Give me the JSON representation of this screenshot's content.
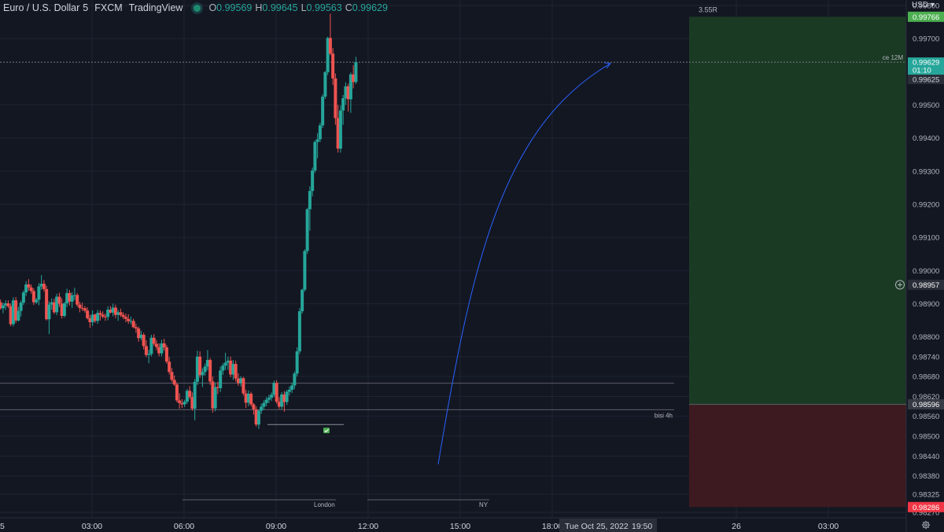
{
  "header": {
    "symbol": "Euro / U.S. Dollar",
    "interval": "5",
    "exchange": "FXCM",
    "source": "TradingView",
    "ohlc": {
      "o_label": "O",
      "o": "0.99569",
      "h_label": "H",
      "h": "0.99645",
      "l_label": "L",
      "l": "0.99563",
      "c_label": "C",
      "c": "0.99629"
    }
  },
  "currency": "USD",
  "colors": {
    "bg": "#131722",
    "up": "#26a69a",
    "down": "#ef5350",
    "grid": "#1f2433",
    "axis_text": "#b2b5be",
    "target_zone": "#1b3a24",
    "stop_zone": "#3d1a20",
    "target_tag": "#4caf50",
    "stop_tag": "#f23645",
    "arrow": "#2962ff"
  },
  "chart_data": {
    "type": "candlestick",
    "y_ticks": [
      "0.99800",
      "0.99700",
      "0.99500",
      "0.99400",
      "0.99300",
      "0.99200",
      "0.99100",
      "0.99000",
      "0.98900",
      "0.98800",
      "0.98740",
      "0.98680",
      "0.98620",
      "0.98560",
      "0.98500",
      "0.98440",
      "0.98380",
      "0.98325",
      "0.98270"
    ],
    "x_ticks": [
      {
        "label": "5",
        "t": -5.5
      },
      {
        "label": "03:00",
        "t": 3
      },
      {
        "label": "06:00",
        "t": 6
      },
      {
        "label": "09:00",
        "t": 9
      },
      {
        "label": "12:00",
        "t": 12
      },
      {
        "label": "15:00",
        "t": 15
      },
      {
        "label": "18:00",
        "t": 18
      },
      {
        "label": "26",
        "t": 24
      },
      {
        "label": "03:00",
        "t": 27
      }
    ],
    "date_label": "Tue Oct 25, 2022",
    "time_label": "19:50",
    "price_tags": {
      "target": "0.99766",
      "last": "0.99629",
      "countdown": "01:10",
      "prev": "0.99625",
      "crosshair": "0.98957",
      "entry": "0.98596",
      "stop": "0.98286"
    },
    "ratio_label": "3.55R",
    "annotations": {
      "ce": "ce 12M",
      "bisi": "bisi 4h",
      "london": "London",
      "ny": "NY"
    },
    "candles": [
      [
        0.98873,
        0.98877,
        0.98857,
        0.98866
      ],
      [
        0.98866,
        0.98894,
        0.98858,
        0.98887
      ],
      [
        0.98887,
        0.98902,
        0.98872,
        0.98894
      ],
      [
        0.98894,
        0.98906,
        0.98882,
        0.989
      ],
      [
        0.989,
        0.98914,
        0.98889,
        0.98904
      ],
      [
        0.98904,
        0.98912,
        0.98882,
        0.98886
      ],
      [
        0.98886,
        0.98903,
        0.98871,
        0.98895
      ],
      [
        0.98895,
        0.9891,
        0.98881,
        0.98901
      ],
      [
        0.98901,
        0.9891,
        0.98887,
        0.98892
      ],
      [
        0.98892,
        0.989,
        0.98832,
        0.98838
      ],
      [
        0.98838,
        0.98919,
        0.98831,
        0.9891
      ],
      [
        0.9891,
        0.9892,
        0.98842,
        0.98849
      ],
      [
        0.98849,
        0.9889,
        0.98846,
        0.98878
      ],
      [
        0.98878,
        0.98909,
        0.98861,
        0.98903
      ],
      [
        0.98903,
        0.9894,
        0.98896,
        0.98934
      ],
      [
        0.98934,
        0.98968,
        0.98923,
        0.98958
      ],
      [
        0.98958,
        0.98974,
        0.98939,
        0.98949
      ],
      [
        0.98949,
        0.98958,
        0.9893,
        0.98938
      ],
      [
        0.98938,
        0.98946,
        0.98896,
        0.98904
      ],
      [
        0.98904,
        0.98917,
        0.98899,
        0.98912
      ],
      [
        0.98912,
        0.98962,
        0.98895,
        0.98952
      ],
      [
        0.98952,
        0.98986,
        0.98942,
        0.9896
      ],
      [
        0.9896,
        0.98971,
        0.98936,
        0.98944
      ],
      [
        0.98944,
        0.98954,
        0.98849,
        0.98853
      ],
      [
        0.98853,
        0.98907,
        0.98808,
        0.98897
      ],
      [
        0.98897,
        0.98916,
        0.98882,
        0.98904
      ],
      [
        0.98904,
        0.98915,
        0.98869,
        0.98874
      ],
      [
        0.98874,
        0.9893,
        0.98865,
        0.98921
      ],
      [
        0.98921,
        0.98933,
        0.9889,
        0.989
      ],
      [
        0.989,
        0.98916,
        0.98855,
        0.98863
      ],
      [
        0.98863,
        0.98906,
        0.98858,
        0.98901
      ],
      [
        0.98901,
        0.98945,
        0.9889,
        0.98932
      ],
      [
        0.98932,
        0.98941,
        0.98894,
        0.98906
      ],
      [
        0.98906,
        0.98935,
        0.98887,
        0.98925
      ],
      [
        0.98925,
        0.98948,
        0.98911,
        0.98926
      ],
      [
        0.98926,
        0.98932,
        0.98891,
        0.98897
      ],
      [
        0.98897,
        0.98906,
        0.98874,
        0.98887
      ],
      [
        0.98887,
        0.98903,
        0.98878,
        0.98886
      ],
      [
        0.98886,
        0.98893,
        0.98873,
        0.98879
      ],
      [
        0.98879,
        0.98889,
        0.98852,
        0.98856
      ],
      [
        0.98856,
        0.98866,
        0.98827,
        0.98844
      ],
      [
        0.98844,
        0.9888,
        0.98833,
        0.98867
      ],
      [
        0.98867,
        0.9887,
        0.98842,
        0.98848
      ],
      [
        0.98848,
        0.98881,
        0.98839,
        0.98872
      ],
      [
        0.98872,
        0.9888,
        0.98849,
        0.98867
      ],
      [
        0.98867,
        0.98877,
        0.98855,
        0.98861
      ],
      [
        0.98861,
        0.9887,
        0.98848,
        0.9886
      ],
      [
        0.9886,
        0.98892,
        0.9885,
        0.98882
      ],
      [
        0.98882,
        0.98893,
        0.9887,
        0.98873
      ],
      [
        0.98873,
        0.989,
        0.98862,
        0.98888
      ],
      [
        0.98888,
        0.98897,
        0.98856,
        0.98866
      ],
      [
        0.98866,
        0.98881,
        0.98848,
        0.98874
      ],
      [
        0.98874,
        0.98885,
        0.9886,
        0.98866
      ],
      [
        0.98866,
        0.98874,
        0.98853,
        0.9886
      ],
      [
        0.9886,
        0.9887,
        0.98844,
        0.98854
      ],
      [
        0.98854,
        0.98868,
        0.98839,
        0.98847
      ],
      [
        0.98847,
        0.98861,
        0.98838,
        0.98848
      ],
      [
        0.98848,
        0.98855,
        0.98826,
        0.98829
      ],
      [
        0.98829,
        0.9884,
        0.98812,
        0.98825
      ],
      [
        0.98825,
        0.98831,
        0.98785,
        0.98796
      ],
      [
        0.98796,
        0.98818,
        0.98789,
        0.98806
      ],
      [
        0.98806,
        0.98812,
        0.98762,
        0.98772
      ],
      [
        0.98772,
        0.9879,
        0.98738,
        0.98745
      ],
      [
        0.98745,
        0.98761,
        0.9872,
        0.98748
      ],
      [
        0.98748,
        0.98806,
        0.98741,
        0.98797
      ],
      [
        0.98797,
        0.98808,
        0.98773,
        0.98779
      ],
      [
        0.98779,
        0.9879,
        0.9876,
        0.98769
      ],
      [
        0.98769,
        0.9878,
        0.98741,
        0.9875
      ],
      [
        0.9875,
        0.98791,
        0.98741,
        0.9878
      ],
      [
        0.9878,
        0.98794,
        0.98758,
        0.98768
      ],
      [
        0.98768,
        0.98775,
        0.98719,
        0.98725
      ],
      [
        0.98725,
        0.98739,
        0.98686,
        0.98694
      ],
      [
        0.98694,
        0.98706,
        0.98664,
        0.9867
      ],
      [
        0.9867,
        0.98683,
        0.98652,
        0.98656
      ],
      [
        0.98656,
        0.98662,
        0.98602,
        0.98608
      ],
      [
        0.98608,
        0.9863,
        0.98583,
        0.986
      ],
      [
        0.986,
        0.98612,
        0.98585,
        0.98596
      ],
      [
        0.98596,
        0.9861,
        0.98588,
        0.98604
      ],
      [
        0.98604,
        0.98643,
        0.98598,
        0.98637
      ],
      [
        0.98637,
        0.98651,
        0.98612,
        0.98618
      ],
      [
        0.98618,
        0.98632,
        0.98577,
        0.98583
      ],
      [
        0.98583,
        0.98673,
        0.98548,
        0.98664
      ],
      [
        0.98664,
        0.98758,
        0.98654,
        0.9874
      ],
      [
        0.9874,
        0.98756,
        0.98676,
        0.98684
      ],
      [
        0.98684,
        0.98705,
        0.98648,
        0.98694
      ],
      [
        0.98694,
        0.98719,
        0.98683,
        0.9871
      ],
      [
        0.9871,
        0.9876,
        0.98699,
        0.9873
      ],
      [
        0.9873,
        0.98736,
        0.98655,
        0.98665
      ],
      [
        0.98665,
        0.9868,
        0.98571,
        0.98584
      ],
      [
        0.98584,
        0.98662,
        0.98575,
        0.98648
      ],
      [
        0.98648,
        0.98664,
        0.98627,
        0.98645
      ],
      [
        0.98645,
        0.9871,
        0.98633,
        0.98698
      ],
      [
        0.98698,
        0.9872,
        0.98685,
        0.98713
      ],
      [
        0.98713,
        0.98752,
        0.987,
        0.98722
      ],
      [
        0.98722,
        0.9874,
        0.987,
        0.98728
      ],
      [
        0.98728,
        0.9874,
        0.98678,
        0.98686
      ],
      [
        0.98686,
        0.9873,
        0.9867,
        0.98718
      ],
      [
        0.98718,
        0.98728,
        0.98665,
        0.98674
      ],
      [
        0.98674,
        0.9869,
        0.98652,
        0.9866
      ],
      [
        0.9866,
        0.98681,
        0.9865,
        0.98675
      ],
      [
        0.98675,
        0.98679,
        0.98623,
        0.98629
      ],
      [
        0.98629,
        0.9864,
        0.98585,
        0.98601
      ],
      [
        0.98601,
        0.98638,
        0.9859,
        0.98628
      ],
      [
        0.98628,
        0.98634,
        0.9859,
        0.98596
      ],
      [
        0.98596,
        0.986,
        0.98565,
        0.98581
      ],
      [
        0.98581,
        0.9859,
        0.98529,
        0.98535
      ],
      [
        0.98535,
        0.98581,
        0.98522,
        0.98577
      ],
      [
        0.98577,
        0.98598,
        0.98567,
        0.98589
      ],
      [
        0.98589,
        0.98608,
        0.9858,
        0.986
      ],
      [
        0.986,
        0.98618,
        0.98591,
        0.9861
      ],
      [
        0.9861,
        0.98625,
        0.986,
        0.98616
      ],
      [
        0.98616,
        0.98632,
        0.98606,
        0.98625
      ],
      [
        0.98625,
        0.98668,
        0.98618,
        0.98661
      ],
      [
        0.98661,
        0.98669,
        0.98598,
        0.98604
      ],
      [
        0.98604,
        0.98618,
        0.98582,
        0.98589
      ],
      [
        0.98589,
        0.98633,
        0.98581,
        0.98626
      ],
      [
        0.98626,
        0.98636,
        0.98574,
        0.98603
      ],
      [
        0.98603,
        0.9864,
        0.98594,
        0.98634
      ],
      [
        0.98634,
        0.9865,
        0.98623,
        0.9864
      ],
      [
        0.9864,
        0.98662,
        0.9863,
        0.98653
      ],
      [
        0.98653,
        0.98695,
        0.98642,
        0.98689
      ],
      [
        0.98689,
        0.98768,
        0.9868,
        0.98756
      ],
      [
        0.98756,
        0.98887,
        0.98748,
        0.98877
      ],
      [
        0.98877,
        0.98945,
        0.9887,
        0.98942
      ],
      [
        0.98942,
        0.99064,
        0.98936,
        0.99059
      ],
      [
        0.99059,
        0.99189,
        0.9905,
        0.99185
      ],
      [
        0.99185,
        0.99254,
        0.9912,
        0.9924
      ],
      [
        0.9924,
        0.99311,
        0.99224,
        0.99302
      ],
      [
        0.99302,
        0.99393,
        0.99295,
        0.99388
      ],
      [
        0.99388,
        0.99415,
        0.99339,
        0.99396
      ],
      [
        0.99396,
        0.99446,
        0.99387,
        0.99438
      ],
      [
        0.99438,
        0.99532,
        0.9943,
        0.99525
      ],
      [
        0.99525,
        0.99602,
        0.99518,
        0.99599
      ],
      [
        0.99599,
        0.99706,
        0.9959,
        0.99702
      ],
      [
        0.99702,
        0.99775,
        0.9965,
        0.99655
      ],
      [
        0.99655,
        0.99672,
        0.9956,
        0.9958
      ],
      [
        0.9958,
        0.99595,
        0.9944,
        0.9946
      ],
      [
        0.9946,
        0.995,
        0.99356,
        0.99368
      ],
      [
        0.99368,
        0.99498,
        0.99356,
        0.99483
      ],
      [
        0.99483,
        0.9953,
        0.9944,
        0.9952
      ],
      [
        0.9952,
        0.99568,
        0.995,
        0.99556
      ],
      [
        0.99556,
        0.99564,
        0.9948,
        0.99517
      ],
      [
        0.99517,
        0.99598,
        0.99476,
        0.99592
      ],
      [
        0.99592,
        0.9962,
        0.9955,
        0.99569
      ],
      [
        0.99569,
        0.99645,
        0.99563,
        0.99629
      ]
    ]
  }
}
